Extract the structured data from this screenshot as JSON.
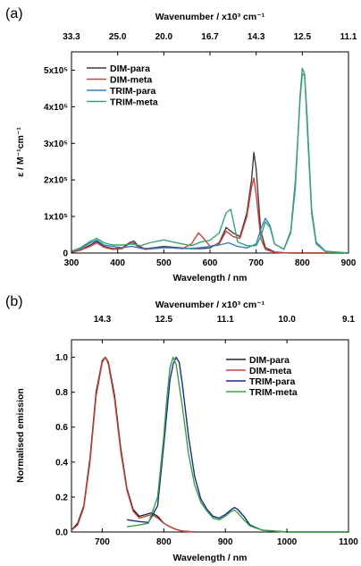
{
  "chart_data": [
    {
      "panel_label": "(a)",
      "type": "line",
      "xlabel": "Wavelength / nm",
      "ylabel": "ε / M⁻¹cm⁻¹",
      "top_xlabel": "Wavenumber / x10³ cm⁻¹",
      "xlim": [
        300,
        900
      ],
      "ylim": [
        0,
        550000
      ],
      "x_ticks": [
        {
          "value": 300,
          "label": "300"
        },
        {
          "value": 400,
          "label": "400"
        },
        {
          "value": 500,
          "label": "500"
        },
        {
          "value": 600,
          "label": "600"
        },
        {
          "value": 700,
          "label": "700"
        },
        {
          "value": 800,
          "label": "800"
        },
        {
          "value": 900,
          "label": "900"
        }
      ],
      "y_ticks": [
        {
          "value": 0,
          "label": "0"
        },
        {
          "value": 100000,
          "label": "1x10⁵"
        },
        {
          "value": 200000,
          "label": "2x10⁵"
        },
        {
          "value": 300000,
          "label": "3x10⁵"
        },
        {
          "value": 400000,
          "label": "4x10⁵"
        },
        {
          "value": 500000,
          "label": "5x10⁵"
        }
      ],
      "top_ticks": [
        {
          "value": 300,
          "label": "33.3"
        },
        {
          "value": 400,
          "label": "25.0"
        },
        {
          "value": 500,
          "label": "20.0"
        },
        {
          "value": 600,
          "label": "16.7"
        },
        {
          "value": 700,
          "label": "14.3"
        },
        {
          "value": 800,
          "label": "12.5"
        },
        {
          "value": 900,
          "label": "11.1"
        }
      ],
      "legend_position": "top-left",
      "series": [
        {
          "name": "DIM-para",
          "color": "#3f3f3f",
          "x": [
            300,
            320,
            340,
            355,
            370,
            390,
            410,
            425,
            435,
            445,
            460,
            480,
            500,
            520,
            540,
            560,
            580,
            600,
            620,
            635,
            650,
            665,
            680,
            690,
            695,
            700,
            710,
            720,
            740,
            760,
            780,
            800,
            820,
            850,
            900
          ],
          "y": [
            2000,
            8000,
            22000,
            32000,
            18000,
            12000,
            14000,
            28000,
            33000,
            18000,
            12000,
            15000,
            18000,
            16000,
            14000,
            12000,
            12000,
            14000,
            28000,
            70000,
            55000,
            45000,
            110000,
            200000,
            275000,
            230000,
            60000,
            15000,
            3000,
            1000,
            0,
            0,
            0,
            0,
            0
          ]
        },
        {
          "name": "DIM-meta",
          "color": "#d0403a",
          "x": [
            300,
            320,
            340,
            355,
            370,
            390,
            410,
            425,
            435,
            445,
            460,
            480,
            500,
            520,
            540,
            560,
            575,
            585,
            600,
            620,
            635,
            650,
            665,
            680,
            690,
            695,
            700,
            710,
            720,
            740,
            760,
            780,
            800,
            820,
            850,
            900
          ],
          "y": [
            2000,
            8000,
            18000,
            28000,
            16000,
            10000,
            12000,
            25000,
            28000,
            15000,
            10000,
            12000,
            15000,
            14000,
            12000,
            25000,
            55000,
            42000,
            18000,
            25000,
            60000,
            45000,
            40000,
            100000,
            180000,
            205000,
            160000,
            40000,
            10000,
            2000,
            500,
            0,
            0,
            0,
            0,
            0
          ]
        },
        {
          "name": "TRIM-para",
          "color": "#2f7fc4",
          "x": [
            300,
            320,
            340,
            355,
            370,
            390,
            410,
            430,
            450,
            470,
            500,
            520,
            540,
            560,
            580,
            600,
            620,
            640,
            660,
            680,
            700,
            710,
            720,
            730,
            740,
            760,
            775,
            785,
            795,
            800,
            805,
            810,
            820,
            830,
            850,
            900
          ],
          "y": [
            5000,
            12000,
            28000,
            35000,
            22000,
            18000,
            15000,
            18000,
            14000,
            12000,
            15000,
            14000,
            12000,
            13000,
            15000,
            18000,
            22000,
            28000,
            18000,
            14000,
            25000,
            65000,
            95000,
            75000,
            25000,
            10000,
            60000,
            200000,
            420000,
            490000,
            485000,
            380000,
            120000,
            30000,
            5000,
            0
          ]
        },
        {
          "name": "TRIM-meta",
          "color": "#3fa272",
          "x": [
            300,
            320,
            340,
            355,
            370,
            390,
            410,
            430,
            450,
            470,
            500,
            520,
            540,
            560,
            580,
            600,
            620,
            635,
            645,
            660,
            680,
            700,
            710,
            720,
            730,
            740,
            760,
            775,
            785,
            795,
            800,
            805,
            810,
            820,
            830,
            850,
            900
          ],
          "y": [
            5000,
            15000,
            32000,
            40000,
            28000,
            22000,
            22000,
            25000,
            20000,
            28000,
            36000,
            30000,
            25000,
            20000,
            30000,
            35000,
            55000,
            110000,
            120000,
            30000,
            20000,
            20000,
            45000,
            85000,
            70000,
            25000,
            10000,
            55000,
            180000,
            430000,
            505000,
            490000,
            360000,
            110000,
            25000,
            4000,
            0
          ]
        }
      ]
    },
    {
      "panel_label": "(b)",
      "type": "line",
      "xlabel": "Wavelength / nm",
      "ylabel": "Normalised emission",
      "top_xlabel": "Wavenumber / x10³ cm⁻¹",
      "xlim": [
        650,
        1100
      ],
      "ylim": [
        0,
        1.1
      ],
      "x_ticks": [
        {
          "value": 700,
          "label": "700"
        },
        {
          "value": 800,
          "label": "800"
        },
        {
          "value": 900,
          "label": "900"
        },
        {
          "value": 1000,
          "label": "1000"
        },
        {
          "value": 1100,
          "label": "1100"
        }
      ],
      "y_ticks": [
        {
          "value": 0,
          "label": "0.0"
        },
        {
          "value": 0.2,
          "label": "0.2"
        },
        {
          "value": 0.4,
          "label": "0.4"
        },
        {
          "value": 0.6,
          "label": "0.6"
        },
        {
          "value": 0.8,
          "label": "0.8"
        },
        {
          "value": 1.0,
          "label": "1.0"
        }
      ],
      "top_ticks": [
        {
          "value": 700,
          "label": "14.3"
        },
        {
          "value": 800,
          "label": "12.5"
        },
        {
          "value": 900,
          "label": "11.1"
        },
        {
          "value": 1000,
          "label": "10.0"
        },
        {
          "value": 1100,
          "label": "9.1"
        }
      ],
      "legend_position": "top-right",
      "series": [
        {
          "name": "DIM-para",
          "color": "#1f1f2f",
          "x": [
            650,
            660,
            670,
            680,
            690,
            700,
            705,
            710,
            720,
            730,
            740,
            750,
            760,
            770,
            780,
            790,
            800,
            810,
            820,
            830,
            850
          ],
          "y": [
            0.01,
            0.05,
            0.15,
            0.42,
            0.8,
            0.98,
            1.0,
            0.97,
            0.78,
            0.48,
            0.25,
            0.13,
            0.09,
            0.1,
            0.11,
            0.09,
            0.05,
            0.03,
            0.015,
            0.005,
            0.0
          ]
        },
        {
          "name": "DIM-meta",
          "color": "#c8403a",
          "x": [
            650,
            660,
            670,
            680,
            690,
            700,
            705,
            710,
            720,
            730,
            740,
            750,
            760,
            770,
            780,
            790,
            800,
            810,
            820,
            830,
            850
          ],
          "y": [
            0.01,
            0.04,
            0.14,
            0.4,
            0.78,
            0.97,
            1.0,
            0.96,
            0.76,
            0.46,
            0.24,
            0.12,
            0.08,
            0.09,
            0.1,
            0.08,
            0.05,
            0.03,
            0.015,
            0.005,
            0.0
          ]
        },
        {
          "name": "TRIM-para",
          "color": "#1c2a8a",
          "x": [
            740,
            760,
            775,
            790,
            800,
            810,
            815,
            820,
            825,
            830,
            840,
            850,
            860,
            870,
            880,
            890,
            900,
            910,
            915,
            920,
            930,
            940,
            960,
            1000,
            1050,
            1100
          ],
          "y": [
            0.07,
            0.06,
            0.055,
            0.15,
            0.5,
            0.87,
            0.96,
            1.0,
            0.97,
            0.85,
            0.55,
            0.32,
            0.19,
            0.13,
            0.09,
            0.08,
            0.1,
            0.13,
            0.14,
            0.13,
            0.09,
            0.04,
            0.01,
            0.0,
            0.0,
            0.0
          ]
        },
        {
          "name": "TRIM-meta",
          "color": "#3aa040",
          "x": [
            740,
            760,
            775,
            790,
            800,
            805,
            810,
            815,
            820,
            830,
            840,
            850,
            860,
            870,
            880,
            890,
            900,
            910,
            915,
            920,
            930,
            940,
            960,
            1000,
            1050,
            1100
          ],
          "y": [
            0.03,
            0.04,
            0.05,
            0.2,
            0.55,
            0.77,
            0.94,
            1.0,
            0.96,
            0.72,
            0.45,
            0.27,
            0.17,
            0.12,
            0.08,
            0.07,
            0.09,
            0.12,
            0.125,
            0.11,
            0.07,
            0.035,
            0.01,
            0.0,
            0.0,
            0.0
          ]
        }
      ]
    }
  ]
}
